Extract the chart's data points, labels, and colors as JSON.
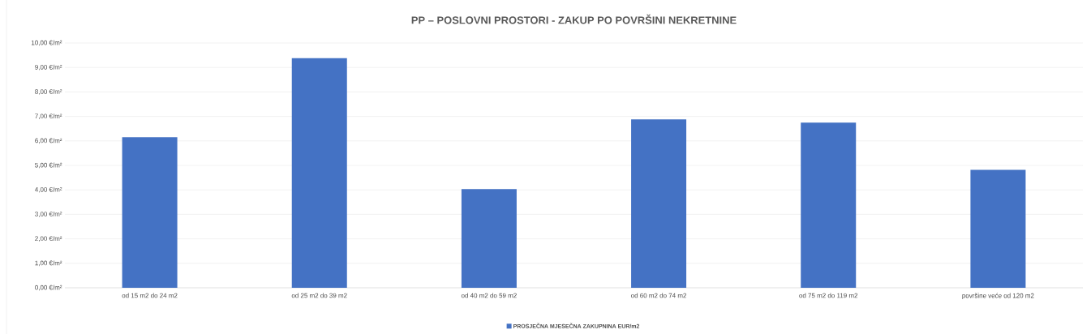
{
  "chart_data": {
    "type": "bar",
    "title": "PP – POSLOVNI PROSTORI - ZAKUP PO POVRŠINI NEKRETNINE",
    "categories": [
      "od 15 m2 do 24 m2",
      "od 25 m2 do 39 m2",
      "od 40 m2 do 59 m2",
      "od 60 m2 do 74 m2",
      "od 75 m2 do 119 m2",
      "površine veće od 120 m2"
    ],
    "series": [
      {
        "name": "PROSJEČNA MJESEČNA ZAKUPNINA EUR/m2",
        "color": "#4472c4",
        "values": [
          6.15,
          9.38,
          4.03,
          6.88,
          6.75,
          4.82
        ]
      }
    ],
    "ylim": [
      0,
      10
    ],
    "yticks": [
      {
        "value": 0,
        "label": "0,00 €/m²"
      },
      {
        "value": 1,
        "label": "1,00 €/m²"
      },
      {
        "value": 2,
        "label": "2,00 €/m²"
      },
      {
        "value": 3,
        "label": "3,00 €/m²"
      },
      {
        "value": 4,
        "label": "4,00 €/m²"
      },
      {
        "value": 5,
        "label": "5,00 €/m²"
      },
      {
        "value": 6,
        "label": "6,00 €/m²"
      },
      {
        "value": 7,
        "label": "7,00 €/m²"
      },
      {
        "value": 8,
        "label": "8,00 €/m²"
      },
      {
        "value": 9,
        "label": "9,00 €/m²"
      },
      {
        "value": 10,
        "label": "10,00 €/m²"
      }
    ],
    "grid": "y",
    "legend": "bottom"
  }
}
